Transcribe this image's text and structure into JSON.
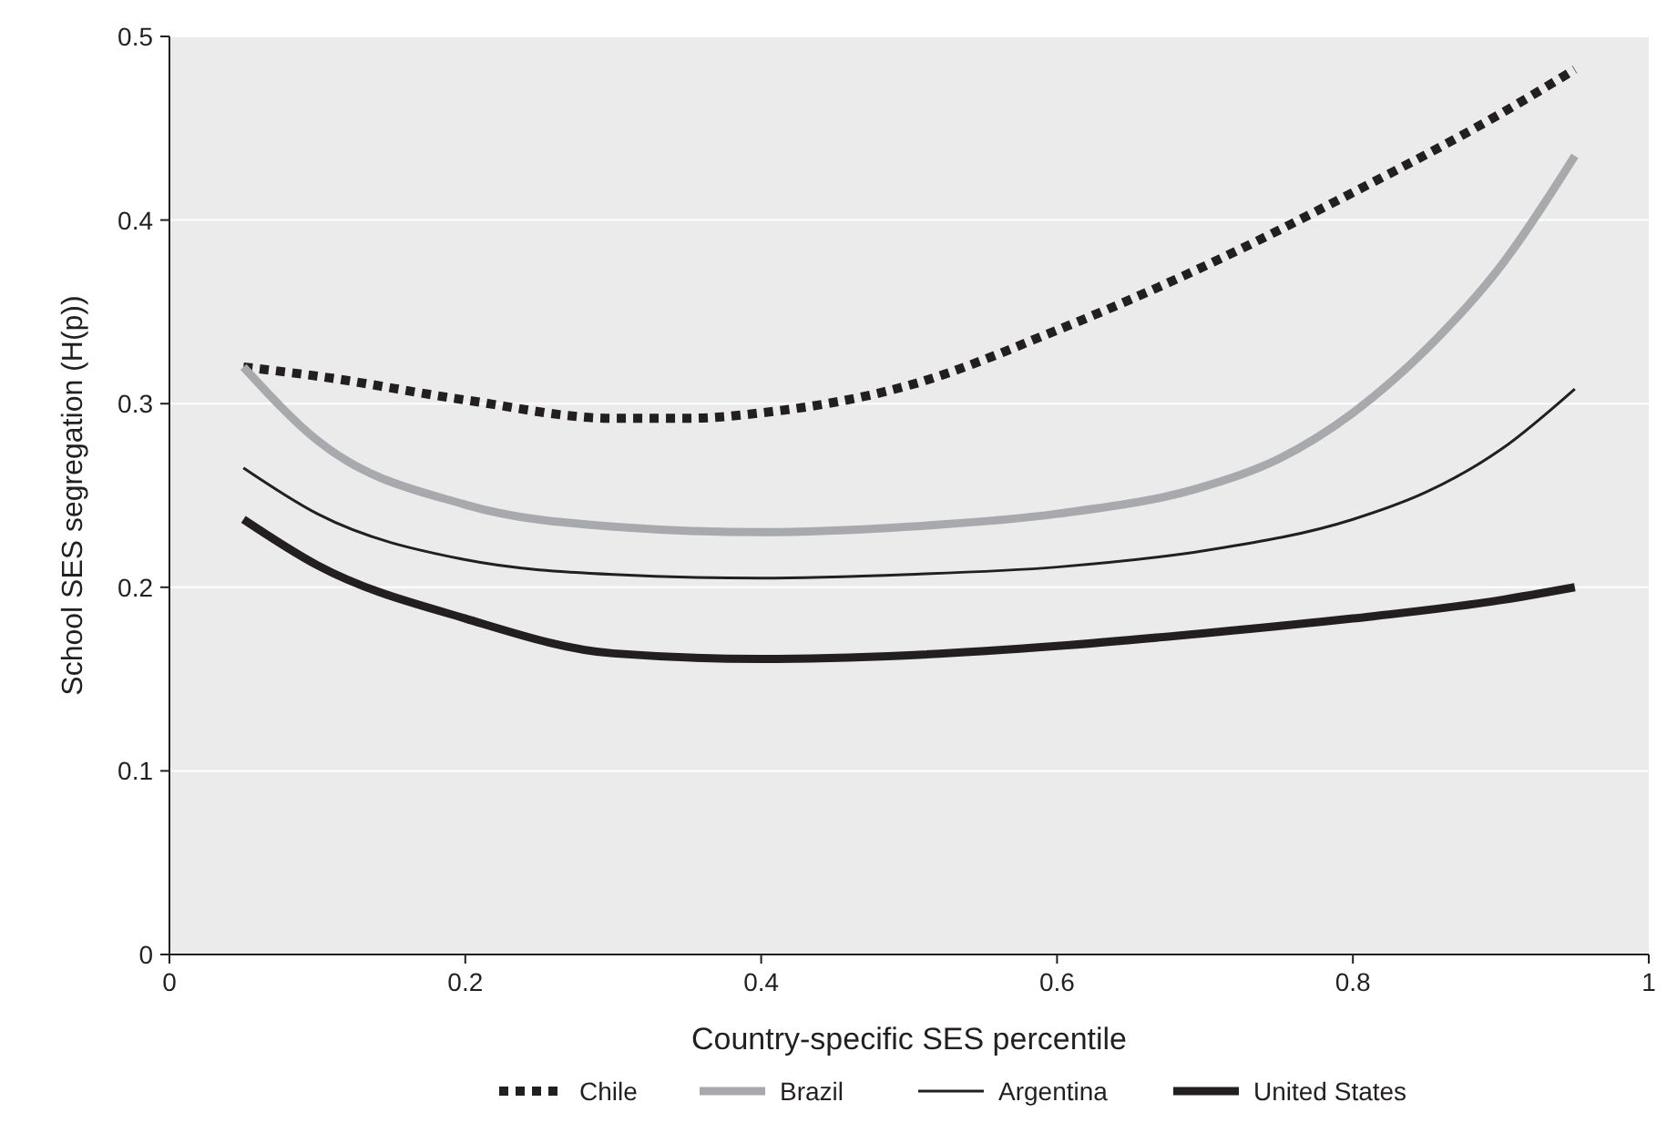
{
  "chart_data": {
    "type": "line",
    "xlabel": "Country-specific SES percentile",
    "ylabel": "School SES segregation (H(p))",
    "xlim": [
      0,
      1
    ],
    "xticks": [
      0,
      0.2,
      0.4,
      0.6,
      0.8,
      1
    ],
    "ylim": [
      0,
      0.5
    ],
    "yticks": [
      0,
      0.1,
      0.2,
      0.3,
      0.4,
      0.5
    ],
    "grid": "y",
    "legend": "bottom",
    "marker": "none",
    "series": [
      {
        "name": "Chile",
        "color": "#231f20",
        "line_style": "dotted",
        "x": [
          0.05,
          0.1,
          0.2,
          0.3,
          0.35,
          0.4,
          0.5,
          0.6,
          0.7,
          0.8,
          0.9,
          0.95
        ],
        "values": [
          0.32,
          0.315,
          0.302,
          0.292,
          0.292,
          0.295,
          0.31,
          0.34,
          0.375,
          0.415,
          0.458,
          0.482
        ]
      },
      {
        "name": "Brazil",
        "color": "#a7a9ac",
        "line_style": "solid",
        "x": [
          0.05,
          0.1,
          0.2,
          0.3,
          0.4,
          0.5,
          0.6,
          0.7,
          0.75,
          0.8,
          0.85,
          0.9,
          0.95
        ],
        "values": [
          0.32,
          0.28,
          0.245,
          0.233,
          0.23,
          0.233,
          0.24,
          0.255,
          0.27,
          0.295,
          0.33,
          0.375,
          0.435
        ]
      },
      {
        "name": "Argentina",
        "color": "#231f20",
        "line_style": "solid",
        "x": [
          0.05,
          0.1,
          0.2,
          0.3,
          0.4,
          0.5,
          0.6,
          0.7,
          0.8,
          0.85,
          0.9,
          0.95
        ],
        "values": [
          0.265,
          0.24,
          0.215,
          0.207,
          0.205,
          0.207,
          0.211,
          0.22,
          0.237,
          0.252,
          0.275,
          0.308
        ]
      },
      {
        "name": "United States",
        "color": "#231f20",
        "line_style": "solid",
        "x": [
          0.05,
          0.1,
          0.2,
          0.3,
          0.4,
          0.5,
          0.6,
          0.7,
          0.8,
          0.9,
          0.95
        ],
        "values": [
          0.237,
          0.212,
          0.183,
          0.164,
          0.161,
          0.163,
          0.168,
          0.175,
          0.183,
          0.193,
          0.2
        ]
      }
    ]
  }
}
